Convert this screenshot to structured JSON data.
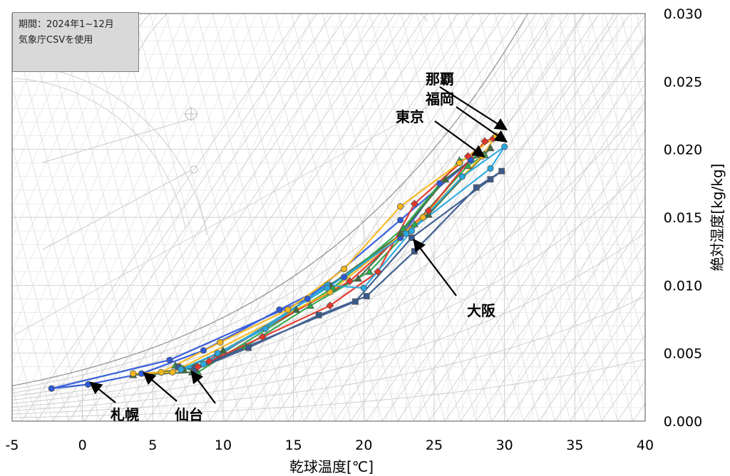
{
  "note": {
    "period": "期間：2024年1~12月",
    "source": "気象庁CSVを使用"
  },
  "chart_data": {
    "type": "line",
    "xlabel": "乾球温度[℃]",
    "ylabel": "絶対湿度[kg/kg]",
    "xlim": [
      -5,
      40
    ],
    "ylim": [
      0,
      0.03
    ],
    "x_ticks": [
      "-5",
      "0",
      "5",
      "10",
      "15",
      "20",
      "25",
      "30",
      "35",
      "40"
    ],
    "y_ticks": [
      "0.000",
      "0.005",
      "0.010",
      "0.015",
      "0.020",
      "0.025",
      "0.030"
    ],
    "background": "psychrometric chart",
    "series": [
      {
        "name": "札幌",
        "color": "#2e59d9",
        "marker": "circle",
        "x": [
          -2.2,
          0.4,
          4.2,
          8.6,
          14.0,
          18.6,
          22.6,
          25.4,
          27.6,
          22.6,
          16.0,
          6.2
        ],
        "y": [
          0.0024,
          0.0027,
          0.0035,
          0.0052,
          0.0082,
          0.0106,
          0.0135,
          0.0175,
          0.0192,
          0.0148,
          0.009,
          0.0045
        ]
      },
      {
        "name": "仙台",
        "color": "#3e6b3e",
        "marker": "triangle",
        "x": [
          3.6,
          7.2,
          10.0,
          15.2,
          19.6,
          22.6,
          25.8,
          28.2,
          29.0,
          24.6,
          17.6,
          7.8
        ],
        "y": [
          0.0034,
          0.0038,
          0.0052,
          0.0082,
          0.0105,
          0.0138,
          0.0178,
          0.0196,
          0.0201,
          0.0152,
          0.01,
          0.0036
        ]
      },
      {
        "name": "東京",
        "color": "#2ea84a",
        "marker": "triangle",
        "x": [
          6.6,
          8.0,
          11.6,
          16.2,
          20.4,
          23.6,
          27.4,
          28.6,
          26.8,
          22.8,
          17.8,
          8.2
        ],
        "y": [
          0.0041,
          0.004,
          0.0055,
          0.0085,
          0.011,
          0.0145,
          0.0188,
          0.0196,
          0.0192,
          0.0142,
          0.0098,
          0.0036
        ]
      },
      {
        "name": "大阪",
        "color": "#3a5a8c",
        "marker": "square",
        "x": [
          6.8,
          8.0,
          11.8,
          16.8,
          20.2,
          23.6,
          28.0,
          29.8,
          29.0,
          23.4,
          19.4,
          8.0
        ],
        "y": [
          0.004,
          0.0038,
          0.0054,
          0.0078,
          0.0092,
          0.0125,
          0.0172,
          0.0184,
          0.0178,
          0.0135,
          0.0088,
          0.0039
        ]
      },
      {
        "name": "福岡",
        "color": "#e6342a",
        "marker": "diamond",
        "x": [
          8.2,
          9.0,
          12.8,
          17.6,
          21.0,
          23.6,
          27.4,
          29.2,
          28.6,
          24.6,
          19.0,
          9.6
        ],
        "y": [
          0.004,
          0.0044,
          0.0062,
          0.0085,
          0.011,
          0.016,
          0.0195,
          0.0208,
          0.0206,
          0.0155,
          0.0103,
          0.0049
        ]
      },
      {
        "name": "那覇",
        "color": "#f5b81c",
        "marker": "circle",
        "x": [
          3.6,
          5.6,
          9.8,
          14.6,
          18.6,
          22.6,
          26.8,
          29.4,
          28.4,
          24.2,
          17.6,
          6.4
        ],
        "y": [
          0.0035,
          0.0036,
          0.0058,
          0.0082,
          0.0112,
          0.0158,
          0.019,
          0.021,
          0.0195,
          0.015,
          0.0095,
          0.0036
        ]
      },
      {
        "name": "",
        "color": "#29a8e0",
        "marker": "circle",
        "x": [
          7.0,
          9.6,
          13.0,
          17.4,
          20.0,
          23.4,
          27.0,
          30.0,
          29.0,
          23.0,
          17.4,
          8.6
        ],
        "y": [
          0.0038,
          0.005,
          0.0068,
          0.01,
          0.0098,
          0.014,
          0.018,
          0.0202,
          0.0186,
          0.0138,
          0.0098,
          0.0042
        ]
      }
    ],
    "annotations": [
      {
        "text": "那覇",
        "point": [
          30.0,
          0.0213
        ]
      },
      {
        "text": "福岡",
        "point": [
          30.0,
          0.0204
        ]
      },
      {
        "text": "東京",
        "point": [
          28.4,
          0.0193
        ]
      },
      {
        "text": "大阪",
        "point": [
          23.4,
          0.0132
        ]
      },
      {
        "text": "札幌",
        "point": [
          0.4,
          0.0027
        ]
      },
      {
        "text": "仙台",
        "point": [
          4.2,
          0.0034
        ]
      },
      {
        "text": "",
        "point": [
          7.6,
          0.0035
        ]
      }
    ]
  }
}
